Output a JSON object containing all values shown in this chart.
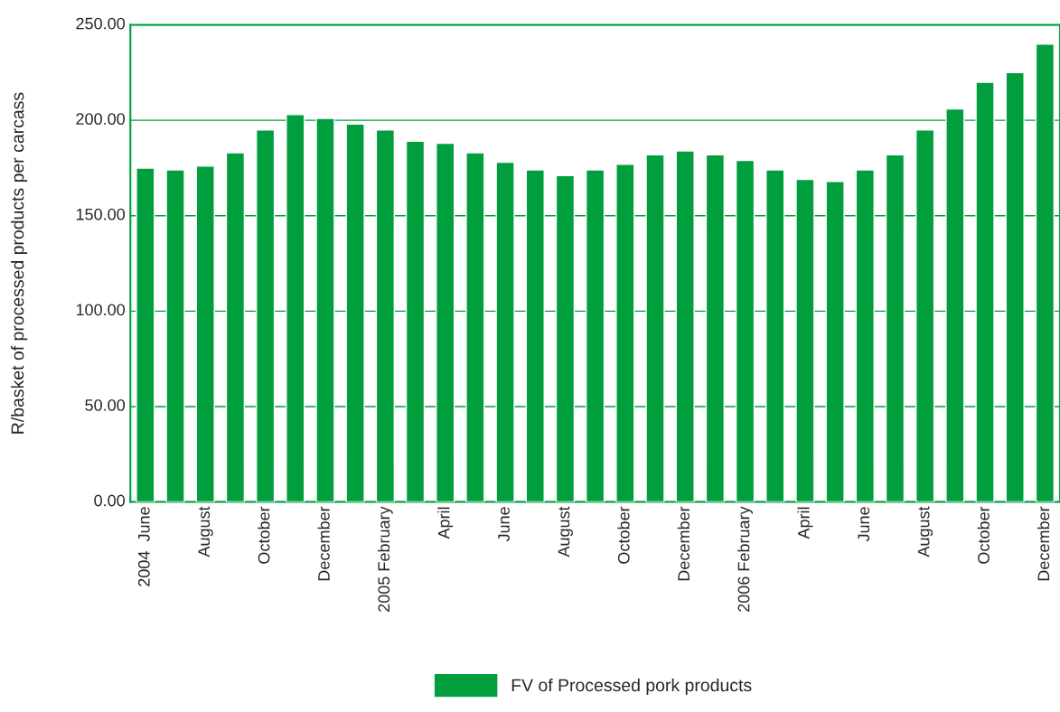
{
  "chart_data": {
    "type": "bar",
    "ylabel": "R/basket of processed products per carcass",
    "categories": [
      "2004  June",
      null,
      "August",
      null,
      "October",
      null,
      "December",
      null,
      "2005 February",
      null,
      "April",
      null,
      "June",
      null,
      "August",
      null,
      "October",
      null,
      "December",
      null,
      "2006 February",
      null,
      "April",
      null,
      "June",
      null,
      "August",
      null,
      "October",
      null,
      "December"
    ],
    "series": [
      {
        "name": "FV of Processed pork products",
        "color": "#009e3d",
        "values": [
          175,
          174,
          176,
          183,
          195,
          203,
          201,
          198,
          195,
          189,
          188,
          183,
          178,
          174,
          171,
          174,
          177,
          182,
          184,
          182,
          179,
          174,
          169,
          168,
          174,
          182,
          195,
          206,
          220,
          225,
          240
        ]
      }
    ],
    "ylim": [
      0,
      250
    ],
    "yticks": [
      {
        "value": 0,
        "label": "0.00"
      },
      {
        "value": 50,
        "label": "50.00"
      },
      {
        "value": 100,
        "label": "100.00"
      },
      {
        "value": 150,
        "label": "150.00"
      },
      {
        "value": 200,
        "label": "200.00"
      },
      {
        "value": 250,
        "label": "250.00"
      }
    ],
    "grid": "y",
    "legend": "bottom"
  }
}
